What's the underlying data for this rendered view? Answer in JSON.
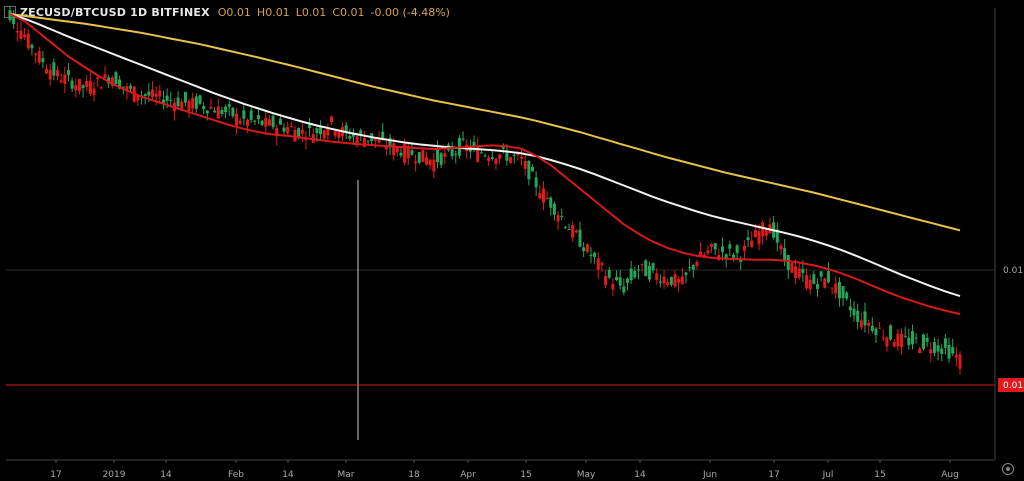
{
  "header": {
    "symbol": "ZECUSD/BTCUSD",
    "interval": "1D",
    "exchange": "BITFINEX",
    "open": "O0.01",
    "high": "H0.01",
    "low": "L0.01",
    "close": "C0.01",
    "change": "-0.00 (-4.48%)"
  },
  "colors": {
    "up": "#26a65b",
    "down": "#e01b1b",
    "ma_fast": "#d61a1a",
    "ma_mid": "#f2f2f2",
    "ma_slow": "#e8c24a",
    "last_price": "#e01b1b",
    "gridline": "#2b2b2b",
    "axis_text": "#aaaaaa"
  },
  "chart_data": {
    "type": "candlestick",
    "x_tick_labels": [
      "17",
      "2019",
      "14",
      "Feb",
      "14",
      "Mar",
      "18",
      "Apr",
      "15",
      "May",
      "14",
      "Jun",
      "17",
      "Jul",
      "15",
      "Aug"
    ],
    "y_tick_labels": [
      "0.01"
    ],
    "last_price_label": "0.01",
    "legend": "none",
    "grid": true,
    "price_samples": [
      1.0,
      0.955,
      0.91,
      0.875,
      0.86,
      0.845,
      0.855,
      0.87,
      0.84,
      0.83,
      0.825,
      0.818,
      0.812,
      0.808,
      0.8,
      0.79,
      0.775,
      0.77,
      0.765,
      0.76,
      0.75,
      0.752,
      0.77,
      0.745,
      0.74,
      0.735,
      0.72,
      0.71,
      0.7,
      0.69,
      0.7,
      0.72,
      0.71,
      0.705,
      0.7,
      0.69,
      0.64,
      0.6,
      0.56,
      0.52,
      0.48,
      0.44,
      0.42,
      0.46,
      0.45,
      0.44,
      0.43,
      0.48,
      0.5,
      0.495,
      0.49,
      0.53,
      0.56,
      0.48,
      0.45,
      0.43,
      0.44,
      0.4,
      0.36,
      0.34,
      0.32,
      0.31,
      0.305,
      0.3,
      0.29,
      0.27
    ],
    "ma_fast": [
      1.0,
      0.985,
      0.96,
      0.935,
      0.91,
      0.89,
      0.87,
      0.852,
      0.838,
      0.825,
      0.815,
      0.805,
      0.795,
      0.785,
      0.775,
      0.765,
      0.757,
      0.75,
      0.745,
      0.742,
      0.738,
      0.734,
      0.73,
      0.727,
      0.724,
      0.722,
      0.72,
      0.718,
      0.716,
      0.714,
      0.716,
      0.718,
      0.72,
      0.722,
      0.72,
      0.715,
      0.7,
      0.68,
      0.655,
      0.63,
      0.605,
      0.58,
      0.555,
      0.535,
      0.518,
      0.505,
      0.495,
      0.488,
      0.484,
      0.482,
      0.481,
      0.48,
      0.48,
      0.478,
      0.474,
      0.468,
      0.46,
      0.45,
      0.438,
      0.425,
      0.412,
      0.4,
      0.39,
      0.38,
      0.372,
      0.365
    ],
    "ma_mid": [
      1.0,
      0.99,
      0.978,
      0.965,
      0.952,
      0.94,
      0.928,
      0.916,
      0.904,
      0.892,
      0.88,
      0.868,
      0.856,
      0.844,
      0.832,
      0.821,
      0.81,
      0.8,
      0.79,
      0.781,
      0.772,
      0.764,
      0.757,
      0.75,
      0.744,
      0.738,
      0.733,
      0.728,
      0.724,
      0.721,
      0.718,
      0.716,
      0.714,
      0.712,
      0.709,
      0.705,
      0.699,
      0.691,
      0.682,
      0.672,
      0.661,
      0.649,
      0.637,
      0.625,
      0.613,
      0.602,
      0.592,
      0.582,
      0.573,
      0.565,
      0.558,
      0.551,
      0.544,
      0.537,
      0.529,
      0.52,
      0.51,
      0.499,
      0.487,
      0.474,
      0.461,
      0.448,
      0.436,
      0.424,
      0.413,
      0.403
    ],
    "ma_slow": [
      1.0,
      0.996,
      0.992,
      0.988,
      0.984,
      0.98,
      0.975,
      0.97,
      0.965,
      0.96,
      0.954,
      0.948,
      0.942,
      0.936,
      0.929,
      0.922,
      0.915,
      0.908,
      0.9,
      0.893,
      0.885,
      0.877,
      0.869,
      0.861,
      0.853,
      0.845,
      0.838,
      0.831,
      0.824,
      0.817,
      0.811,
      0.805,
      0.799,
      0.793,
      0.787,
      0.781,
      0.774,
      0.766,
      0.758,
      0.75,
      0.741,
      0.732,
      0.723,
      0.714,
      0.705,
      0.696,
      0.688,
      0.68,
      0.672,
      0.664,
      0.657,
      0.65,
      0.643,
      0.636,
      0.629,
      0.622,
      0.614,
      0.606,
      0.598,
      0.59,
      0.582,
      0.574,
      0.566,
      0.558,
      0.55,
      0.542
    ],
    "price_scale_note": "values are relative (1.0 = chart start); axis shows only 0.01"
  }
}
